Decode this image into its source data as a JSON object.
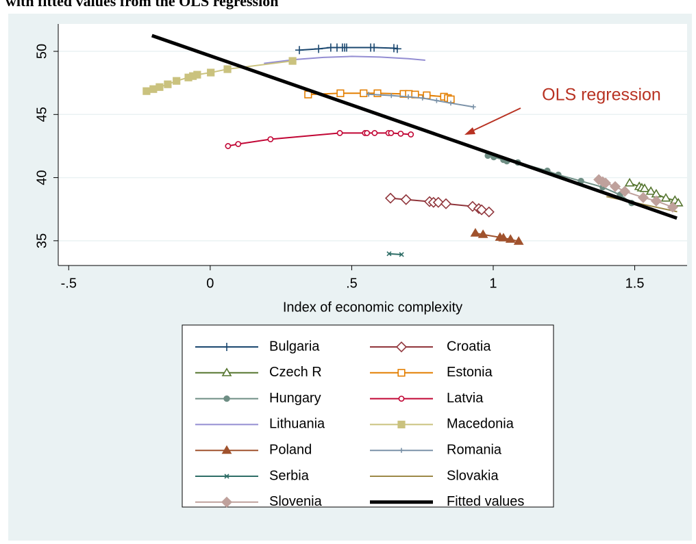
{
  "chart_data": {
    "type": "line",
    "title": "with fitted values from the OLS regression",
    "x_label": "Index of economic complexity",
    "annotation": "OLS regression",
    "xlim": [
      -0.537,
      1.685
    ],
    "ylim": [
      33.04,
      52.17
    ],
    "xticks": [
      {
        "value": -0.5,
        "label": "-.5"
      },
      0,
      {
        "value": 0.5,
        "label": ".5"
      },
      1,
      1.5
    ],
    "yticks": [
      35,
      40,
      45,
      50
    ],
    "grid": true,
    "series": [
      {
        "name": "Bulgaria",
        "color": "#1a476f",
        "marker": "plus",
        "x": [
          0.315,
          0.383,
          0.426,
          0.448,
          0.467,
          0.475,
          0.482,
          0.567,
          0.579,
          0.649,
          0.661
        ],
        "values": [
          50.1,
          50.2,
          50.3,
          50.3,
          50.3,
          50.3,
          50.3,
          50.3,
          50.3,
          50.25,
          50.2
        ]
      },
      {
        "name": "Croatia",
        "color": "#90353b",
        "marker": "diamond-hollow",
        "x": [
          0.637,
          0.692,
          0.775,
          0.789,
          0.806,
          0.833,
          0.927,
          0.949,
          0.959,
          0.985
        ],
        "values": [
          38.37,
          38.26,
          38.1,
          38.04,
          38.04,
          37.93,
          37.72,
          37.55,
          37.45,
          37.28
        ]
      },
      {
        "name": "Czech R",
        "color": "#55752f",
        "marker": "triangle-hollow",
        "x": [
          1.482,
          1.516,
          1.525,
          1.535,
          1.557,
          1.576,
          1.61,
          1.642,
          1.654
        ],
        "values": [
          39.57,
          39.29,
          39.18,
          39.13,
          38.91,
          38.7,
          38.37,
          38.2,
          37.99
        ]
      },
      {
        "name": "Estonia",
        "color": "#e37e00",
        "marker": "square-hollow",
        "x": [
          0.346,
          0.46,
          0.542,
          0.591,
          0.683,
          0.702,
          0.724,
          0.765,
          0.826,
          0.84,
          0.85
        ],
        "values": [
          46.58,
          46.68,
          46.68,
          46.68,
          46.63,
          46.63,
          46.58,
          46.52,
          46.41,
          46.3,
          46.2
        ]
      },
      {
        "name": "Hungary",
        "color": "#6e8e84",
        "marker": "circle",
        "x": [
          0.981,
          1.002,
          1.036,
          1.048,
          1.087,
          1.191,
          1.23,
          1.31,
          1.387,
          1.448,
          1.489
        ],
        "values": [
          41.74,
          41.63,
          41.41,
          41.3,
          41.2,
          40.54,
          40.22,
          39.73,
          39.24,
          38.64,
          37.99
        ]
      },
      {
        "name": "Latvia",
        "color": "#c10534",
        "marker": "circle-hollow",
        "x": [
          0.063,
          0.099,
          0.213,
          0.458,
          0.547,
          0.554,
          0.581,
          0.63,
          0.639,
          0.673,
          0.709
        ],
        "values": [
          42.5,
          42.66,
          43.04,
          43.53,
          43.53,
          43.53,
          43.53,
          43.53,
          43.53,
          43.48,
          43.42
        ]
      },
      {
        "name": "Lithuania",
        "color": "#938dd2",
        "marker": "none",
        "x": [
          0.19,
          0.3,
          0.4,
          0.5,
          0.6,
          0.7,
          0.76
        ],
        "values": [
          49.05,
          49.35,
          49.52,
          49.6,
          49.55,
          49.42,
          49.3
        ]
      },
      {
        "name": "Macedonia",
        "color": "#cac27e",
        "marker": "square",
        "x": [
          -0.225,
          -0.201,
          -0.179,
          -0.15,
          -0.119,
          -0.077,
          -0.061,
          -0.046,
          0.002,
          0.061,
          0.291
        ],
        "values": [
          46.85,
          47.01,
          47.17,
          47.39,
          47.66,
          47.93,
          48.04,
          48.15,
          48.32,
          48.59,
          49.24
        ]
      },
      {
        "name": "Poland",
        "color": "#a0522d",
        "marker": "triangle",
        "x": [
          0.937,
          0.964,
          1.024,
          1.036,
          1.061,
          1.09
        ],
        "values": [
          35.6,
          35.49,
          35.27,
          35.22,
          35.11,
          34.95
        ]
      },
      {
        "name": "Romania",
        "color": "#7b92a8",
        "marker": "plus-small",
        "x": [
          0.56,
          0.64,
          0.7,
          0.75,
          0.8,
          0.85,
          0.93
        ],
        "values": [
          46.6,
          46.5,
          46.4,
          46.3,
          46.1,
          45.9,
          45.6
        ]
      },
      {
        "name": "Serbia",
        "color": "#2d6d66",
        "marker": "x",
        "x": [
          0.632,
          0.676
        ],
        "values": [
          33.97,
          33.91
        ]
      },
      {
        "name": "Slovakia",
        "color": "#9c8847",
        "marker": "none",
        "x": [
          1.4,
          1.65
        ],
        "values": [
          38.5,
          37.3
        ]
      },
      {
        "name": "Slovenia",
        "color": "#bfa19c",
        "marker": "diamond",
        "x": [
          1.373,
          1.387,
          1.397,
          1.431,
          1.465,
          1.53,
          1.576,
          1.634
        ],
        "values": [
          39.84,
          39.67,
          39.57,
          39.29,
          38.91,
          38.42,
          38.15,
          37.66
        ]
      },
      {
        "name": "Fitted values",
        "color": "#000000",
        "marker": "none",
        "width": 5,
        "x": [
          -0.206,
          1.649
        ],
        "values": [
          51.25,
          36.79
        ]
      }
    ]
  }
}
